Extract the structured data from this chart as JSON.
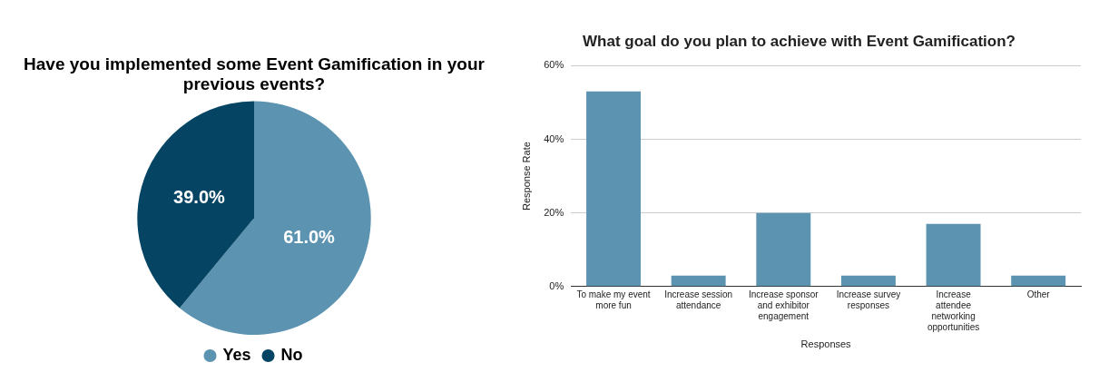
{
  "chart_data": [
    {
      "type": "pie",
      "title": "Have you implemented some Event Gamification in your previous events?",
      "categories": [
        "Yes",
        "No"
      ],
      "values": [
        61.0,
        39.0
      ],
      "colors": [
        "#5b93b1",
        "#054563"
      ],
      "value_labels": [
        "61.0%",
        "39.0%"
      ],
      "legend": "bottom"
    },
    {
      "type": "bar",
      "title": "What goal do you plan to achieve with Event Gamification?",
      "categories": [
        "To make my event more fun",
        "Increase session attendance",
        "Increase sponsor and exhibitor engagement",
        "Increase survey responses",
        "Increase attendee networking opportunities",
        "Other"
      ],
      "values": [
        53,
        3,
        20,
        3,
        17,
        3
      ],
      "color": "#5b93b1",
      "xlabel": "Responses",
      "ylabel": "Response Rate",
      "ylim": [
        0,
        60
      ],
      "yticks": [
        {
          "value": 0,
          "label": "0%"
        },
        {
          "value": 20,
          "label": "20%"
        },
        {
          "value": 40,
          "label": "40%"
        },
        {
          "value": 60,
          "label": "60%"
        }
      ],
      "grid": "y"
    }
  ]
}
